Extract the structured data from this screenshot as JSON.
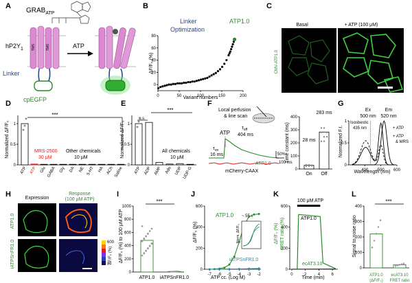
{
  "panels": {
    "A": {
      "letter": "A",
      "sensor_name": "GRAB",
      "sensor_sub": "ATP",
      "receptor": "hP2Y",
      "receptor_sub": "1",
      "tm_left": "TM5",
      "tm_right": "TM6",
      "arrow_label": "ATP",
      "linker_label": "Linker",
      "fp_label": "cpEGFP",
      "colors": {
        "linker": "#27458f",
        "fp": "#2a8a2a",
        "receptor": "#d279c8"
      }
    },
    "B": {
      "letter": "B",
      "annotation": [
        "Linker",
        "Optimization"
      ],
      "highlight_label": "ATP1.0",
      "ylabel": "ΔF/F₀ (%)",
      "xlabel": "Variant numbers"
    },
    "C": {
      "letter": "C",
      "label_basal": "Basal",
      "label_atp": "+ ATP (100 μM)",
      "side_label": "CMV-ATP1.0"
    },
    "D": {
      "letter": "D",
      "ylabel": "Normalized ΔF/F₀",
      "sig": "***",
      "note_red": [
        "MRS-2500",
        "30 μM"
      ],
      "note_other": [
        "Other chemicals",
        "10 μM"
      ]
    },
    "E": {
      "letter": "E",
      "ylabel": "Normalized ΔF/F₀",
      "sig": "***",
      "ns": "n.s.",
      "note": [
        "All chemicals",
        "10 μM"
      ]
    },
    "F": {
      "letter": "F",
      "perfusion": [
        "Local perfusion",
        "& line scan"
      ],
      "atp": "ATP",
      "ton_a": "τ",
      "ton_a_sub": "on",
      "ton_a_val": "16 ms",
      "toff_a": "τ",
      "toff_a_sub": "off",
      "toff_a_val": "404 ms",
      "trace_label": "ATP1.0",
      "ctrl_label": "mCherry-CAAX",
      "scale_y": "50%",
      "scale_x": "100 ms",
      "ylabel": "Time constant (ms)",
      "toff_val": "283 ms",
      "ton_val": "28 ms",
      "x_on": "On",
      "x_off": "Off"
    },
    "G": {
      "letter": "G",
      "ex": [
        "Ex",
        "500 nm"
      ],
      "em": [
        "Em",
        "520 nm"
      ],
      "iso": [
        "Isosbestic",
        "435 nm"
      ],
      "legend": [
        "+ ATP",
        "+ ATP",
        "& MRS"
      ],
      "ylabel": "Normalized F.I.",
      "xlabel": "Wavelength (nm)"
    },
    "H": {
      "letter": "H",
      "col1": "Expression",
      "col2": [
        "Response",
        "(100 μM ATP)"
      ],
      "row1": "ATP1.0",
      "row2": "iATPSnFR1.0",
      "cbar_label": "ΔF/F₀ (%)"
    },
    "I": {
      "letter": "I",
      "ylabel": "ΔF/F₀ (%) to 100 μM ATP",
      "sig": "***",
      "groups": [
        "ATP1.0",
        "iATPSnFR1.0"
      ]
    },
    "J": {
      "letter": "J",
      "ylabel": "ΔF/F₀ (%)",
      "xlabel": "ATP cc. (Log M)",
      "label_atp": "ATP1.0",
      "label_iatp": "iATPSnFR1.0",
      "inset_ylabel": "Norm. ΔF/F₀",
      "inset_note": "~ 55 x"
    },
    "K": {
      "letter": "K",
      "title": "100 μM ATP",
      "ylabel": [
        "ΔF/F₀ (%)",
        "FRET ratio (%)"
      ],
      "xlabel": "Time (min)",
      "trace_label": "ATP1.0",
      "ctrl_label": "ecAT3.10"
    },
    "L": {
      "letter": "L",
      "ylabel": "Signal to noise ratio",
      "sig": "***",
      "groups": [
        [
          "ATP1.0",
          "(ΔF/F₀)"
        ],
        [
          "ecAT3.10",
          "FRET ratio"
        ]
      ]
    }
  },
  "chart_data": [
    {
      "panel": "B",
      "type": "scatter",
      "xlabel": "Variant numbers",
      "ylabel": "ΔF/F₀ (%)",
      "xlim": [
        0,
        200
      ],
      "ylim": [
        -10,
        80
      ],
      "xticks": [
        0,
        50,
        100,
        150,
        200
      ],
      "yticks": [
        0,
        20,
        40,
        60,
        80
      ],
      "x": [
        1,
        6,
        11,
        16,
        21,
        26,
        31,
        36,
        41,
        46,
        51,
        56,
        61,
        66,
        71,
        76,
        81,
        86,
        91,
        96,
        101,
        106,
        111,
        116,
        121,
        126,
        131,
        136,
        141,
        146,
        151,
        156,
        161,
        166,
        168,
        170,
        172,
        174,
        176,
        178,
        180
      ],
      "y": [
        -6,
        -4,
        -3,
        -2,
        -1,
        0,
        0,
        1,
        1,
        2,
        2,
        2,
        3,
        3,
        4,
        4,
        5,
        5,
        6,
        7,
        8,
        9,
        10,
        11,
        13,
        15,
        17,
        19,
        22,
        25,
        29,
        34,
        40,
        48,
        51,
        54,
        58,
        62,
        66,
        70,
        74
      ],
      "highlight": {
        "label": "ATP1.0",
        "x": 180,
        "y": 74
      }
    },
    {
      "panel": "D",
      "type": "bar",
      "ylabel": "Normalized ΔF/F₀",
      "ylim": [
        0,
        1.2
      ],
      "yticks": [
        0,
        0.5,
        1.0
      ],
      "categories": [
        "ATP",
        "ATP",
        "Glu",
        "GABA",
        "Gly",
        "DA",
        "NE",
        "5-HT",
        "HA",
        "ACh",
        "Saline"
      ],
      "values": [
        1.0,
        0.02,
        0.01,
        0.01,
        0.0,
        0.01,
        0.01,
        0.0,
        0.0,
        0.01,
        0.0
      ],
      "red_category_index": 1
    },
    {
      "panel": "E",
      "type": "bar",
      "ylabel": "Normalized ΔF/F₀",
      "ylim": [
        0,
        1.2
      ],
      "yticks": [
        0,
        0.5,
        1.0
      ],
      "categories": [
        "ATP",
        "ADP",
        "AMP",
        "Ado",
        "UDP",
        "UDP-G"
      ],
      "values": [
        1.0,
        1.03,
        0.06,
        0.02,
        0.03,
        0.0
      ]
    },
    {
      "panel": "F",
      "type": "bar",
      "ylabel": "Time constant (ms)",
      "ylim": [
        0,
        400
      ],
      "yticks": [
        0,
        100,
        200,
        300,
        400
      ],
      "categories": [
        "On",
        "Off"
      ],
      "values": [
        28,
        283
      ]
    },
    {
      "panel": "G",
      "type": "line",
      "xlabel": "Wavelength (nm)",
      "ylabel": "Normalized F.I.",
      "xlim": [
        300,
        600
      ],
      "ylim": [
        0,
        1.0
      ],
      "xticks": [
        400,
        500,
        600
      ],
      "yticks": [
        0,
        0.5,
        1.0
      ]
    },
    {
      "panel": "I",
      "type": "bar",
      "ylabel": "ΔF/F₀ (%) to 100 μM ATP",
      "ylim": [
        0,
        1000
      ],
      "yticks": [
        0,
        200,
        400,
        600,
        800,
        1000
      ],
      "categories": [
        "ATP1.0",
        "iATPSnFR1.0"
      ],
      "values": [
        480,
        5
      ]
    },
    {
      "panel": "J",
      "type": "line",
      "xlabel": "ATP cc. (Log M)",
      "ylabel": "ΔF/F₀ (%)",
      "xlim": [
        -7.5,
        -1.8
      ],
      "ylim": [
        0,
        600
      ],
      "xticks": [
        -7,
        -6,
        -5,
        -4,
        -3,
        -2
      ],
      "yticks": [
        0,
        200,
        400,
        600
      ],
      "series": [
        {
          "name": "ATP1.0",
          "x": [
            -7,
            -6.5,
            -6,
            -5.5,
            -5,
            -4.5,
            -4,
            -3.5,
            -3,
            -2.5,
            -2
          ],
          "y": [
            0,
            2,
            6,
            15,
            45,
            120,
            260,
            420,
            500,
            520,
            525
          ]
        },
        {
          "name": "iATPSnFR1.0",
          "x": [
            -7,
            -6,
            -5,
            -4,
            -3,
            -2
          ],
          "y": [
            0,
            1,
            2,
            3,
            5,
            8
          ]
        }
      ]
    },
    {
      "panel": "K",
      "type": "line",
      "xlabel": "Time (min)",
      "ylim": [
        0,
        600
      ],
      "yticks": [
        0,
        200,
        400,
        600
      ],
      "xticks": [
        0,
        2,
        4,
        6
      ]
    },
    {
      "panel": "L",
      "type": "bar",
      "ylabel": "Signal to noise ratio",
      "ylim": [
        0,
        400
      ],
      "yticks": [
        0,
        100,
        200,
        300,
        400
      ],
      "categories": [
        "ATP1.0 (ΔF/F₀)",
        "ecAT3.10 FRET ratio"
      ],
      "values": [
        220,
        20
      ]
    }
  ]
}
